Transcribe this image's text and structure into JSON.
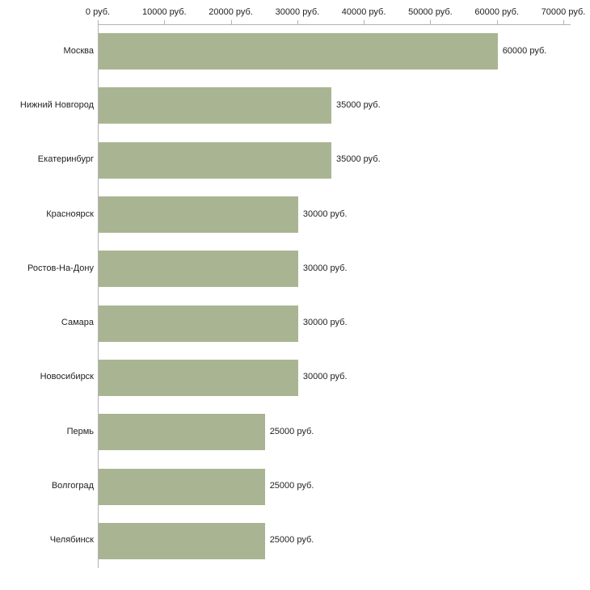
{
  "chart": {
    "background": "#ffffff",
    "bar_color": "#a9b592",
    "axis_color": "#b3b3b3",
    "text_color": "#222222"
  },
  "chart_data": {
    "type": "bar",
    "orientation": "horizontal",
    "title": "",
    "xlabel": "",
    "ylabel": "",
    "unit": "руб.",
    "categories": [
      "Москва",
      "Нижний Новгород",
      "Екатеринбург",
      "Красноярск",
      "Ростов-На-Дону",
      "Самара",
      "Новосибирск",
      "Пермь",
      "Волгоград",
      "Челябинск"
    ],
    "values": [
      60000,
      35000,
      35000,
      30000,
      30000,
      30000,
      30000,
      25000,
      25000,
      25000
    ],
    "value_labels": [
      "60000 руб.",
      "35000 руб.",
      "35000 руб.",
      "30000 руб.",
      "30000 руб.",
      "30000 руб.",
      "30000 руб.",
      "25000 руб.",
      "25000 руб.",
      "25000 руб."
    ],
    "xlim": [
      0,
      70000
    ],
    "x_ticks": [
      0,
      10000,
      20000,
      30000,
      40000,
      50000,
      60000,
      70000
    ],
    "x_tick_labels": [
      "0 руб.",
      "10000 руб.",
      "20000 руб.",
      "30000 руб.",
      "40000 руб.",
      "50000 руб.",
      "60000 руб.",
      "70000 руб."
    ],
    "axis_position": "top",
    "grid": false,
    "legend": false
  }
}
